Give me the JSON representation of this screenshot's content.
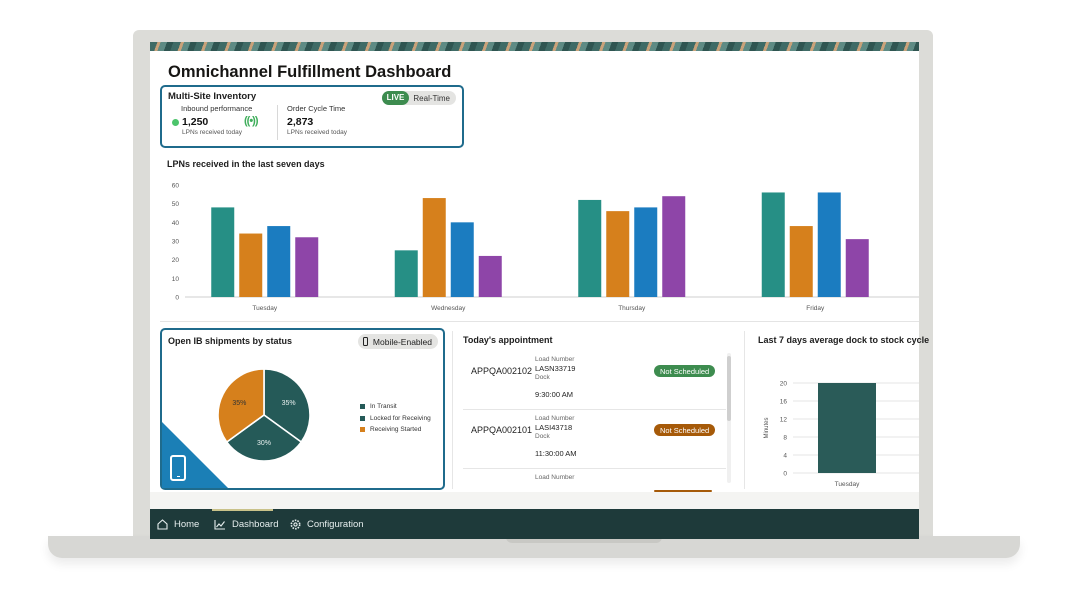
{
  "title": "Omnichannel Fulfillment Dashboard",
  "multi_site": {
    "title": "Multi-Site Inventory",
    "live_label": "LIVE",
    "realtime_label": "Real-Time",
    "inbound_label": "Inbound performance",
    "inbound_value": "1,250",
    "inbound_sub": "LPNs received today",
    "cycle_label": "Order Cycle Time",
    "cycle_value": "2,873",
    "cycle_sub": "LPNs received today"
  },
  "lpn_chart_title": "LPNs received in the last seven days",
  "ib_card": {
    "title": "Open IB shipments by status",
    "mobile_label": "Mobile-Enabled"
  },
  "appointments": {
    "title": "Today's appointment",
    "items": [
      {
        "id": "APPQA002102",
        "load_label": "Load Number",
        "load": "LASN33719",
        "dock_label": "Dock",
        "time": "9:30:00 AM",
        "status": "Not Scheduled"
      },
      {
        "id": "APPQA002101",
        "load_label": "Load Number",
        "load": "LASI43718",
        "dock_label": "Dock",
        "time": "11:30:00 AM",
        "status": "Not Scheduled"
      },
      {
        "load_label": "Load Number"
      }
    ]
  },
  "dock_chart_title": "Last 7 days average dock to stock cycle",
  "nav": {
    "home": "Home",
    "dashboard": "Dashboard",
    "configuration": "Configuration"
  },
  "colors": {
    "teal": "#268f85",
    "orange": "#d6801c",
    "blue": "#1b7cc0",
    "purple": "#8e45a8",
    "pie_dark_teal": "#255a58",
    "live_green": "#3d8c4f",
    "badge_green": "#3d8c4f",
    "badge_orange": "#a65a09",
    "nav_bg": "#1e3a3a"
  },
  "chart_data": [
    {
      "type": "bar",
      "title": "LPNs received in the last seven days",
      "categories": [
        "Tuesday",
        "Wednesday",
        "Thursday",
        "Friday"
      ],
      "series": [
        {
          "values": [
            48,
            25,
            52,
            56
          ],
          "color": "#268f85"
        },
        {
          "values": [
            34,
            53,
            46,
            38
          ],
          "color": "#d6801c"
        },
        {
          "values": [
            38,
            40,
            48,
            56
          ],
          "color": "#1b7cc0"
        },
        {
          "values": [
            32,
            22,
            54,
            31
          ],
          "color": "#8e45a8"
        }
      ],
      "ylim": [
        0,
        60
      ],
      "yticks": [
        0,
        10,
        20,
        30,
        40,
        50,
        60
      ],
      "grid": false
    },
    {
      "type": "pie",
      "title": "Open IB shipments by status",
      "slices": [
        {
          "label": "In Transit",
          "value": 35,
          "text": "35%",
          "color": "#255a58"
        },
        {
          "label": "Locked for Receiving",
          "value": 30,
          "text": "30%",
          "color": "#255a58"
        },
        {
          "label": "Receiving Started",
          "value": 35,
          "text": "35%",
          "color": "#d6801c"
        }
      ],
      "legend": [
        {
          "label": "In Transit",
          "color": "#255a58"
        },
        {
          "label": "Locked for Receiving",
          "color": "#255a58"
        },
        {
          "label": "Receiving Started",
          "color": "#d6801c"
        }
      ],
      "legend_position": "right"
    },
    {
      "type": "bar",
      "title": "Last 7 days average dock to stock cycle",
      "categories": [
        "Tuesday"
      ],
      "values": [
        20
      ],
      "ylabel": "Minutes",
      "ylim": [
        0,
        20
      ],
      "yticks": [
        0,
        4,
        8,
        12,
        16,
        20
      ],
      "color": "#2a5b58",
      "grid": true
    }
  ]
}
